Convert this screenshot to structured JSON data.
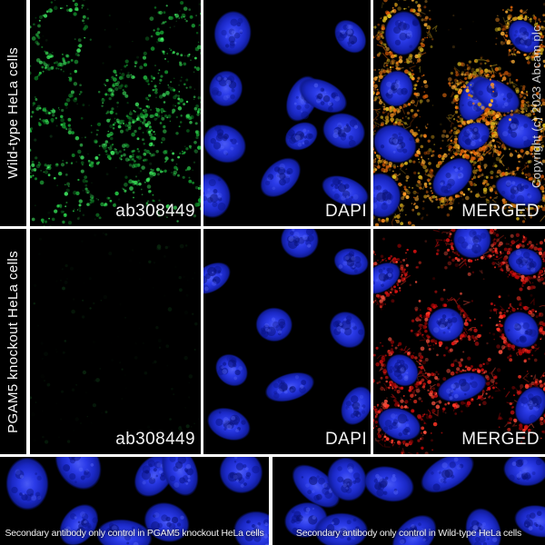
{
  "figure": {
    "copyright_text": "Copyright (c) 2023 Abcam plc",
    "rows": [
      {
        "group_label": "Wild-type HeLa cells",
        "panels": [
          {
            "label": "ab308449"
          },
          {
            "label": "DAPI"
          },
          {
            "label": "MERGED"
          }
        ]
      },
      {
        "group_label": "PGAM5 knockout HeLa cells",
        "panels": [
          {
            "label": "ab308449"
          },
          {
            "label": "DAPI"
          },
          {
            "label": "MERGED"
          }
        ]
      }
    ],
    "controls": [
      {
        "caption": "Secondary antibody only control in PGAM5 knockout HeLa cells"
      },
      {
        "caption": "Secondary antibody only control in Wild-type HeLa cells"
      }
    ],
    "colors": {
      "antibody_stain_green": "#27d148",
      "dapi_blue": "#2433dd",
      "merged_overlay_orange": "#f0720f",
      "merged_overlay_red": "#e01212",
      "panel_divider_white": "#ffffff",
      "background_black": "#000000",
      "label_white": "#f2f2f2"
    }
  }
}
